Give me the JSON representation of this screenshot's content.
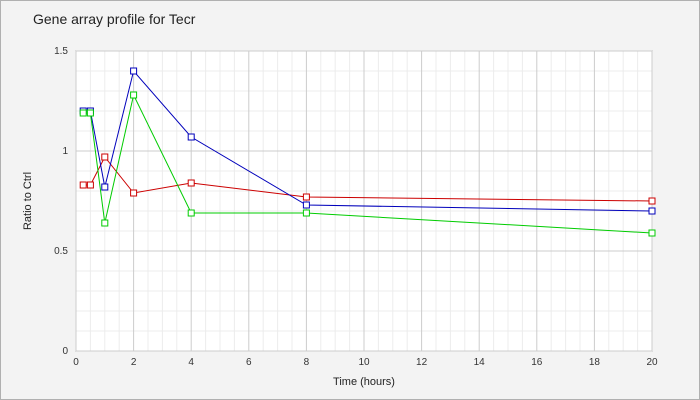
{
  "chart_data": {
    "type": "line",
    "title": "Gene array profile for Tecr",
    "xlabel": "Time (hours)",
    "ylabel": "Ratio to Ctrl",
    "xlim": [
      0,
      20
    ],
    "ylim": [
      0,
      1.5
    ],
    "x_ticks": [
      0,
      2,
      4,
      6,
      8,
      10,
      12,
      14,
      16,
      18,
      20
    ],
    "y_ticks": [
      0,
      0.5,
      1,
      1.5
    ],
    "x_tick_labels": [
      "0",
      "2",
      "4",
      "6",
      "8",
      "10",
      "12",
      "14",
      "16",
      "18",
      "20"
    ],
    "y_tick_labels": [
      "0",
      "0.5",
      "1",
      "1.5"
    ],
    "grid": true,
    "marker": "square",
    "series": [
      {
        "color": "#cc0000",
        "x": [
          0.25,
          0.5,
          1,
          2,
          4,
          8,
          20
        ],
        "y": [
          0.83,
          0.83,
          0.97,
          0.79,
          0.84,
          0.77,
          0.75
        ]
      },
      {
        "color": "#0000bb",
        "x": [
          0.25,
          0.5,
          1,
          2,
          4,
          8,
          20
        ],
        "y": [
          1.2,
          1.2,
          0.82,
          1.4,
          1.07,
          0.73,
          0.7
        ]
      },
      {
        "color": "#00cc00",
        "x": [
          0.25,
          0.5,
          1,
          2,
          4,
          8,
          20
        ],
        "y": [
          1.19,
          1.19,
          0.64,
          1.28,
          0.69,
          0.69,
          0.59
        ]
      }
    ]
  }
}
